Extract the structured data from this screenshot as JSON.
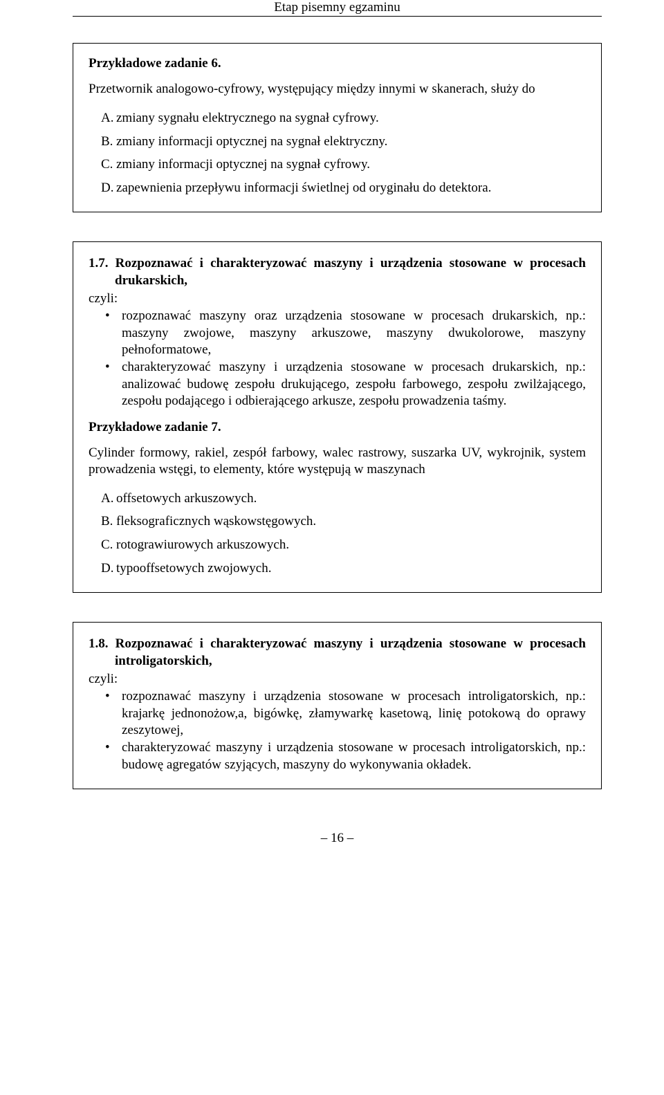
{
  "header": "Etap pisemny egzaminu",
  "box1": {
    "task_title": "Przykładowe zadanie 6.",
    "question": "Przetwornik analogowo-cyfrowy, występujący między innymi w skanerach, służy do",
    "options": {
      "A": {
        "letter": "A.",
        "text": "zmiany sygnału elektrycznego na sygnał cyfrowy."
      },
      "B": {
        "letter": "B.",
        "text": "zmiany informacji optycznej na sygnał elektryczny."
      },
      "C": {
        "letter": "C.",
        "text": "zmiany informacji optycznej na sygnał cyfrowy."
      },
      "D": {
        "letter": "D.",
        "text": "zapewnienia przepływu informacji świetlnej od oryginału do detektora."
      }
    }
  },
  "box2": {
    "heading": "1.7. Rozpoznawać i charakteryzować maszyny i urządzenia stosowane w procesach drukarskich,",
    "czyli": "czyli:",
    "bullets": [
      "rozpoznawać maszyny oraz urządzenia stosowane w procesach drukarskich, np.: maszyny zwojowe, maszyny arkuszowe, maszyny dwukolorowe, maszyny pełnoformatowe,",
      "charakteryzować maszyny i urządzenia stosowane w procesach drukarskich, np.: analizować budowę zespołu drukującego, zespołu farbowego, zespołu zwilżającego, zespołu podającego i odbierającego arkusze, zespołu prowadzenia taśmy."
    ],
    "task_title": "Przykładowe zadanie 7.",
    "question": "Cylinder formowy, rakiel, zespół farbowy, walec rastrowy, suszarka UV, wykrojnik, system prowadzenia wstęgi, to elementy, które występują w maszynach",
    "options": {
      "A": {
        "letter": "A.",
        "text": "offsetowych arkuszowych."
      },
      "B": {
        "letter": "B.",
        "text": "fleksograficznych wąskowstęgowych."
      },
      "C": {
        "letter": "C.",
        "text": "rotograwiurowych arkuszowych."
      },
      "D": {
        "letter": "D.",
        "text": "typooffsetowych zwojowych."
      }
    }
  },
  "box3": {
    "heading": "1.8. Rozpoznawać i charakteryzować maszyny i urządzenia stosowane w procesach introligatorskich,",
    "czyli": "czyli:",
    "bullets": [
      "rozpoznawać maszyny i urządzenia stosowane w procesach introligatorskich, np.: krajarkę jednonożow,a, bigówkę, złamywarkę kasetową, linię potokową do oprawy zeszytowej,",
      "charakteryzować maszyny i urządzenia stosowane w procesach introligatorskich, np.: budowę agregatów szyjących, maszyny do wykonywania okładek."
    ]
  },
  "page_number": "– 16 –"
}
